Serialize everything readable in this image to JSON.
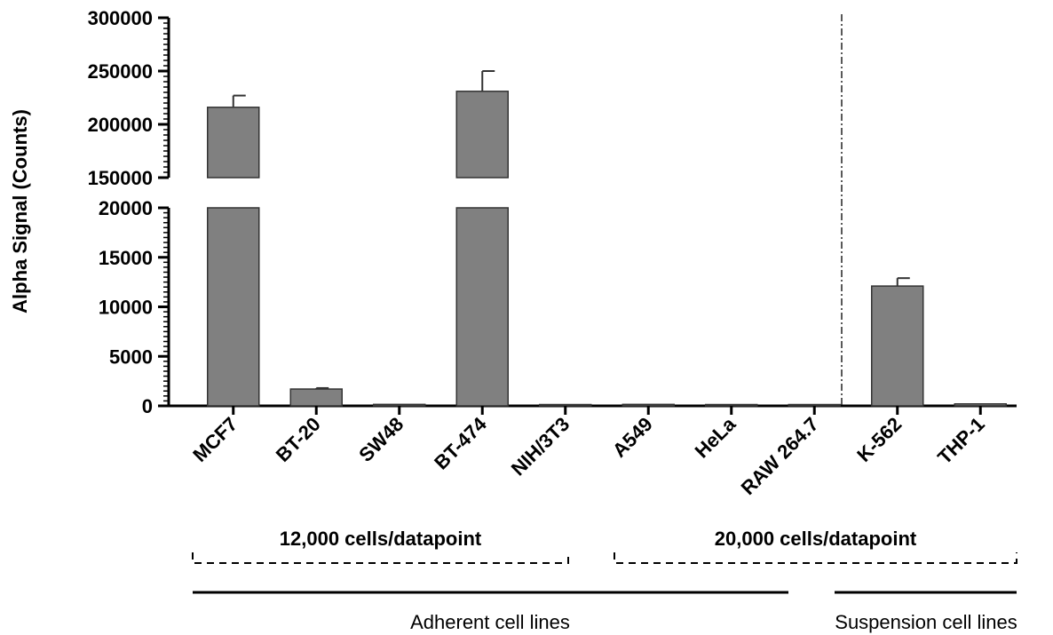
{
  "chart_data": {
    "type": "bar",
    "ylabel": "Alpha Signal (Counts)",
    "categories": [
      "MCF7",
      "BT-20",
      "SW48",
      "BT-474",
      "NIH/3T3",
      "A549",
      "HeLa",
      "RAW 264.7",
      "K-562",
      "THP-1"
    ],
    "values": [
      216000,
      1700,
      150,
      231000,
      60,
      150,
      20,
      80,
      12100,
      200
    ],
    "errors": [
      11000,
      100,
      60,
      19000,
      40,
      60,
      10,
      40,
      800,
      80
    ],
    "bar_color": "#808080",
    "y_axis_broken": true,
    "lower_segment": {
      "ylim": [
        0,
        20000
      ],
      "ticks": [
        "0",
        "5000",
        "10000",
        "15000",
        "20000"
      ]
    },
    "upper_segment": {
      "ylim": [
        150000,
        300000
      ],
      "ticks": [
        "150000",
        "200000",
        "250000",
        "300000"
      ]
    },
    "separator_line": "dash-dot line between RAW 264.7 and K-562",
    "cell_density_groups": [
      {
        "label": "12,000 cells/datapoint",
        "categories": [
          "MCF7",
          "BT-20",
          "SW48",
          "BT-474",
          "NIH/3T3"
        ]
      },
      {
        "label": "20,000 cells/datapoint",
        "categories": [
          "A549",
          "HeLa",
          "RAW 264.7",
          "K-562",
          "THP-1"
        ]
      }
    ],
    "cell_type_groups": [
      {
        "label": "Adherent cell lines",
        "categories": [
          "MCF7",
          "BT-20",
          "SW48",
          "BT-474",
          "NIH/3T3",
          "A549",
          "HeLa",
          "RAW 264.7"
        ]
      },
      {
        "label": "Suspension cell lines",
        "categories": [
          "K-562",
          "THP-1"
        ]
      }
    ],
    "grid": false
  }
}
